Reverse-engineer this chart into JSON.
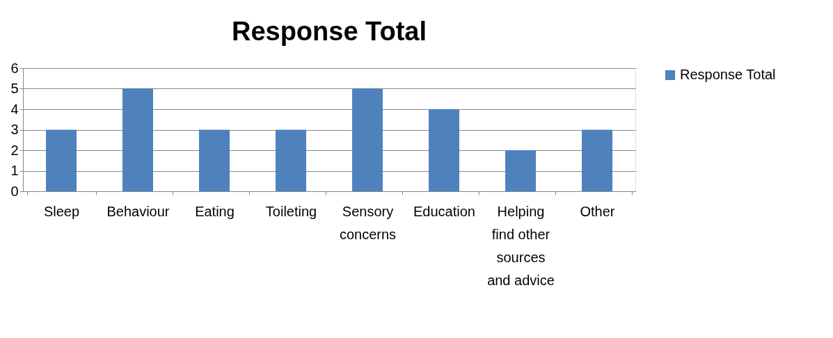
{
  "chart_data": {
    "type": "bar",
    "title": "Response Total",
    "categories": [
      "Sleep",
      "Behaviour",
      "Eating",
      "Toileting",
      "Sensory concerns",
      "Education",
      "Helping find other sources and advice",
      "Other"
    ],
    "series": [
      {
        "name": "Response Total",
        "color": "#4f81bd",
        "values": [
          3,
          5,
          3,
          3,
          5,
          4,
          2,
          3
        ]
      }
    ],
    "ylim": [
      0,
      6
    ],
    "yticks": [
      0,
      1,
      2,
      3,
      4,
      5,
      6
    ],
    "grid": "y",
    "legend": "right"
  }
}
